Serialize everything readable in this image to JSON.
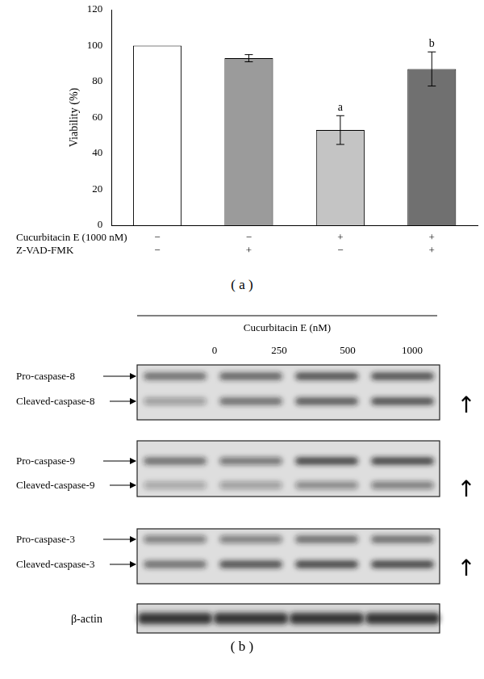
{
  "chart_data": {
    "type": "bar",
    "y_label": "Viability (%)",
    "categories": [
      null,
      null,
      null,
      null
    ],
    "values": [
      100,
      93,
      53,
      87
    ],
    "errors": [
      0,
      2,
      8,
      9.5
    ],
    "colors": [
      "#ffffff",
      "#9b9b9b",
      "#c4c4c4",
      "#707070"
    ],
    "bar_notes": [
      null,
      null,
      "a",
      "b"
    ],
    "treatments": [
      {
        "name": "Cucurbitacin E (1000 nM)",
        "signs": [
          "−",
          "−",
          "+",
          "+"
        ]
      },
      {
        "name": "Z-VAD-FMK",
        "signs": [
          "−",
          "+",
          "−",
          "+"
        ]
      }
    ],
    "ylim": [
      0,
      120
    ],
    "yticks": [
      0,
      20,
      40,
      60,
      80,
      100,
      120
    ],
    "grid": false,
    "tick_labels": "y"
  },
  "panel_labels": [
    "( a )",
    "( b )"
  ],
  "western_blot": {
    "title": "Cucurbitacin E (nM)",
    "doses": [
      0,
      250,
      500,
      1000
    ],
    "blots": [
      {
        "pro_label": "Pro-caspase-8",
        "cleaved_label": "Cleaved-caspase-8",
        "pro_intensity": [
          0.6,
          0.65,
          0.75,
          0.75
        ],
        "cleaved_intensity": [
          0.35,
          0.6,
          0.7,
          0.75
        ],
        "trend": "↑"
      },
      {
        "pro_label": "Pro-caspase-9",
        "cleaved_label": "Cleaved-caspase-9",
        "pro_intensity": [
          0.6,
          0.55,
          0.8,
          0.8
        ],
        "cleaved_intensity": [
          0.3,
          0.35,
          0.45,
          0.5
        ],
        "trend": "↑"
      },
      {
        "pro_label": "Pro-caspase-3",
        "cleaved_label": "Cleaved-caspase-3",
        "pro_intensity": [
          0.5,
          0.5,
          0.6,
          0.6
        ],
        "cleaved_intensity": [
          0.6,
          0.75,
          0.8,
          0.8
        ],
        "trend": "↑"
      }
    ],
    "loading_control": {
      "label": "β-actin",
      "intensity": [
        0.85,
        0.85,
        0.85,
        0.85
      ]
    }
  }
}
